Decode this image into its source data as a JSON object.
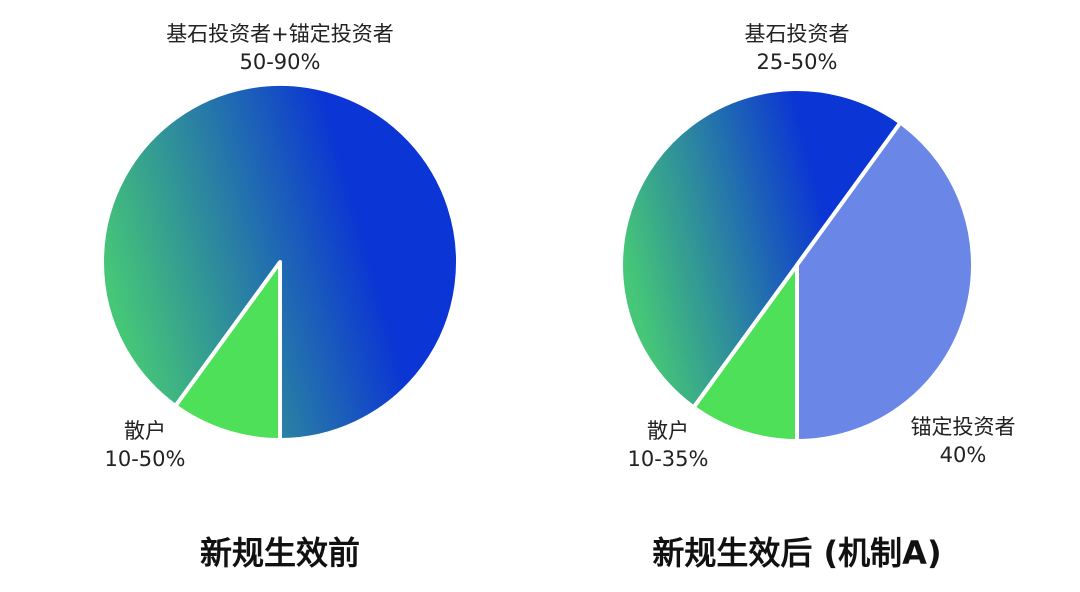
{
  "chart_data": [
    {
      "type": "pie",
      "title": "新规生效前",
      "labels": [
        "散户",
        "基石投资者+锚定投资者"
      ],
      "values": [
        10,
        90
      ],
      "value_labels": [
        "10-50%",
        "50-90%"
      ],
      "colors": [
        "#4fe05a",
        "#0b35d4"
      ]
    },
    {
      "type": "pie",
      "title": "新规生效后 (机制A)",
      "labels": [
        "散户",
        "基石投资者",
        "锚定投资者"
      ],
      "values": [
        10,
        50,
        40
      ],
      "value_labels": [
        "10-35%",
        "25-50%",
        "40%"
      ],
      "colors": [
        "#4fe05a",
        "#0b35d4",
        "#6a86e6"
      ]
    }
  ]
}
